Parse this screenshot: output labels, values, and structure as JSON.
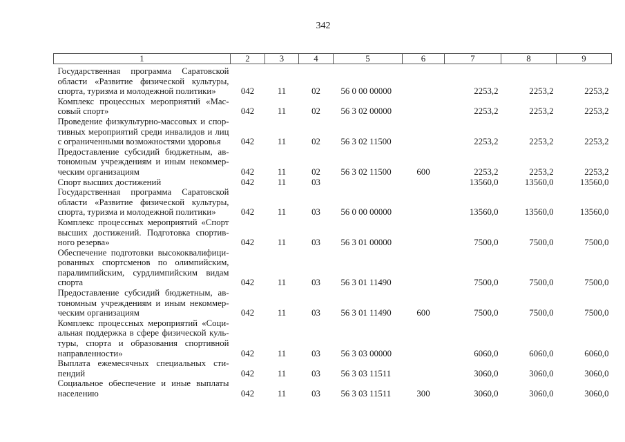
{
  "page_number": "342",
  "columns": [
    "1",
    "2",
    "3",
    "4",
    "5",
    "6",
    "7",
    "8",
    "9"
  ],
  "rows": [
    {
      "name": [
        "Государственная программа Саратовской",
        "области «Развитие физической культуры,",
        "спорта, туризма и молодежной политики»"
      ],
      "c2": "042",
      "c3": "11",
      "c4": "02",
      "c5": "56 0 00 00000",
      "c6": "",
      "c7": "2253,2",
      "c8": "2253,2",
      "c9": "2253,2"
    },
    {
      "name": [
        "Комплекс процессных мероприятий «Мас-",
        "совый спорт»"
      ],
      "c2": "042",
      "c3": "11",
      "c4": "02",
      "c5": "56 3 02 00000",
      "c6": "",
      "c7": "2253,2",
      "c8": "2253,2",
      "c9": "2253,2"
    },
    {
      "name": [
        "Проведение физкультурно-массовых и спор-",
        "тивных мероприятий среди инвалидов и лиц",
        "с ограниченными возможностями здоровья"
      ],
      "c2": "042",
      "c3": "11",
      "c4": "02",
      "c5": "56 3 02 11500",
      "c6": "",
      "c7": "2253,2",
      "c8": "2253,2",
      "c9": "2253,2"
    },
    {
      "name": [
        "Предоставление субсидий бюджетным, ав-",
        "тономным учреждениям и иным некоммер-",
        "ческим организациям"
      ],
      "c2": "042",
      "c3": "11",
      "c4": "02",
      "c5": "56 3 02 11500",
      "c6": "600",
      "c7": "2253,2",
      "c8": "2253,2",
      "c9": "2253,2"
    },
    {
      "name": [
        "Спорт высших достижений"
      ],
      "c2": "042",
      "c3": "11",
      "c4": "03",
      "c5": "",
      "c6": "",
      "c7": "13560,0",
      "c8": "13560,0",
      "c9": "13560,0"
    },
    {
      "name": [
        "Государственная программа Саратовской",
        "области «Развитие физической культуры,",
        "спорта, туризма и молодежной политики»"
      ],
      "c2": "042",
      "c3": "11",
      "c4": "03",
      "c5": "56 0 00 00000",
      "c6": "",
      "c7": "13560,0",
      "c8": "13560,0",
      "c9": "13560,0"
    },
    {
      "name": [
        "Комплекс процессных мероприятий «Спорт",
        "высших достижений. Подготовка спортив-",
        "ного резерва»"
      ],
      "c2": "042",
      "c3": "11",
      "c4": "03",
      "c5": "56 3 01 00000",
      "c6": "",
      "c7": "7500,0",
      "c8": "7500,0",
      "c9": "7500,0"
    },
    {
      "name": [
        "Обеспечение подготовки высококвалифици-",
        "рованных спортсменов по олимпийским,",
        "паралимпийским, сурдлимпийским видам",
        "спорта"
      ],
      "c2": "042",
      "c3": "11",
      "c4": "03",
      "c5": "56 3 01 11490",
      "c6": "",
      "c7": "7500,0",
      "c8": "7500,0",
      "c9": "7500,0"
    },
    {
      "name": [
        "Предоставление субсидий бюджетным, ав-",
        "тономным учреждениям и иным некоммер-",
        "ческим организациям"
      ],
      "c2": "042",
      "c3": "11",
      "c4": "03",
      "c5": "56 3 01 11490",
      "c6": "600",
      "c7": "7500,0",
      "c8": "7500,0",
      "c9": "7500,0"
    },
    {
      "name": [
        "Комплекс процессных мероприятий «Соци-",
        "альная поддержка в сфере физической куль-",
        "туры, спорта и образования спортивной",
        "направленности»"
      ],
      "c2": "042",
      "c3": "11",
      "c4": "03",
      "c5": "56 3 03 00000",
      "c6": "",
      "c7": "6060,0",
      "c8": "6060,0",
      "c9": "6060,0"
    },
    {
      "name": [
        "Выплата ежемесячных специальных сти-",
        "пендий"
      ],
      "c2": "042",
      "c3": "11",
      "c4": "03",
      "c5": "56 3 03 11511",
      "c6": "",
      "c7": "3060,0",
      "c8": "3060,0",
      "c9": "3060,0"
    },
    {
      "name": [
        "Социальное обеспечение и иные выплаты",
        "населению"
      ],
      "c2": "042",
      "c3": "11",
      "c4": "03",
      "c5": "56 3 03 11511",
      "c6": "300",
      "c7": "3060,0",
      "c8": "3060,0",
      "c9": "3060,0"
    }
  ]
}
